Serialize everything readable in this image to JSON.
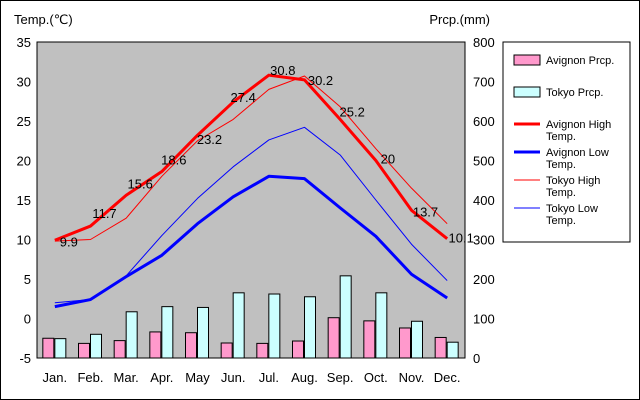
{
  "chart_data": {
    "type": "bar+line",
    "left_axis": {
      "label": "Temp.(℃)",
      "ylim": [
        -5,
        35
      ],
      "ticks": [
        35,
        30,
        25,
        20,
        15,
        10,
        5,
        0,
        -5
      ]
    },
    "right_axis": {
      "label": "Prcp.(mm)",
      "ylim": [
        0,
        800
      ],
      "ticks": [
        800,
        700,
        600,
        500,
        400,
        300,
        200,
        100,
        0
      ]
    },
    "categories": [
      "Jan.",
      "Feb.",
      "Mar.",
      "Apr.",
      "May",
      "Jun.",
      "Jul.",
      "Aug.",
      "Sep.",
      "Oct.",
      "Nov.",
      "Dec."
    ],
    "grid": false,
    "legend_position": "right",
    "bars": [
      {
        "name": "Avignon Prcp.",
        "color": "#ff99cc",
        "values": [
          50,
          37,
          44,
          66,
          64,
          38,
          37,
          43,
          102,
          94,
          76,
          52
        ]
      },
      {
        "name": "Tokyo Prcp.",
        "color": "#ccffff",
        "values": [
          49,
          60,
          117,
          130,
          128,
          165,
          162,
          155,
          208,
          165,
          93,
          40
        ]
      }
    ],
    "lines": [
      {
        "name": "Avignon High Temp.",
        "color": "#ff0000",
        "width": 3,
        "values": [
          9.9,
          11.7,
          15.6,
          18.6,
          23.2,
          27.4,
          30.8,
          30.2,
          25.2,
          20.0,
          13.7,
          10.1
        ]
      },
      {
        "name": "Avignon Low Temp.",
        "color": "#0000ff",
        "width": 3,
        "values": [
          1.5,
          2.4,
          5.3,
          8.0,
          12.0,
          15.4,
          18.0,
          17.7,
          14.0,
          10.4,
          5.6,
          2.6
        ]
      },
      {
        "name": "Tokyo High Temp.",
        "color": "#ff0000",
        "width": 1,
        "values": [
          9.8,
          10.0,
          12.7,
          18.0,
          22.5,
          25.2,
          29.0,
          30.7,
          26.8,
          21.5,
          16.5,
          12.0
        ]
      },
      {
        "name": "Tokyo Low Temp.",
        "color": "#0000ff",
        "width": 1,
        "values": [
          2.0,
          2.4,
          5.4,
          10.5,
          15.2,
          19.2,
          22.6,
          24.2,
          20.7,
          15.0,
          9.4,
          4.8
        ]
      }
    ],
    "data_labels": [
      "9.9",
      "11.7",
      "15.6",
      "18.6",
      "23.2",
      "27.4",
      "30.8",
      "30.2",
      "25.2",
      "20",
      "13.7",
      "10.1"
    ]
  }
}
